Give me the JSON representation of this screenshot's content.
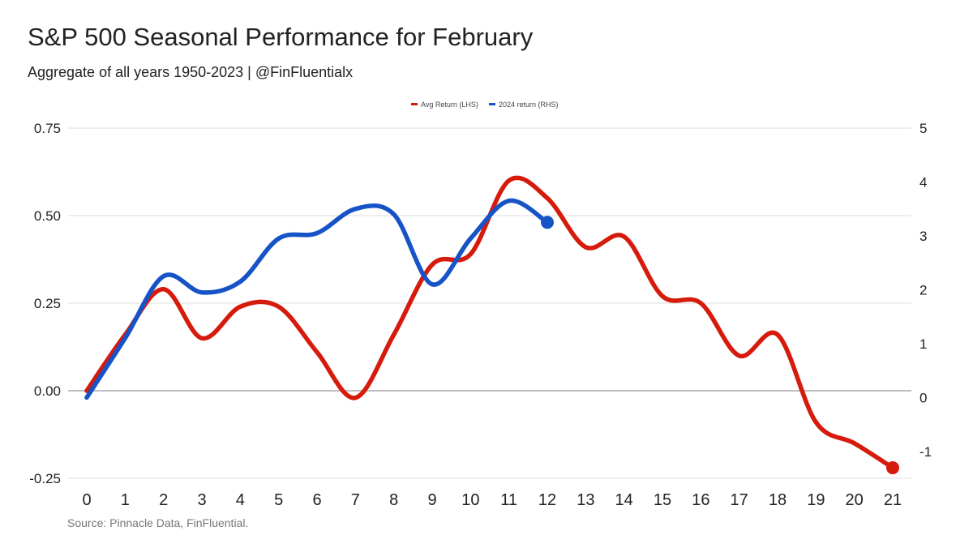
{
  "title": "S&P 500 Seasonal Performance for February",
  "subtitle": "Aggregate of all years 1950-2023 | @FinFluentialx",
  "source": "Source: Pinnacle Data, FinFluential.",
  "colors": {
    "avg": "#d61a0c",
    "y2024": "#1553c7",
    "grid": "#dddddd",
    "zero": "#aaaaaa"
  },
  "chart_data": {
    "type": "line",
    "x": [
      0,
      1,
      2,
      3,
      4,
      5,
      6,
      7,
      8,
      9,
      10,
      11,
      12,
      13,
      14,
      15,
      16,
      17,
      18,
      19,
      20,
      21
    ],
    "legend": {
      "position": "top-center"
    },
    "grid": true,
    "y_left": {
      "ylim": [
        -0.25,
        0.75
      ],
      "ticks": [
        -0.25,
        0,
        0.25,
        0.5,
        0.75
      ],
      "tick_labels": [
        "-0.25",
        "0.00",
        "0.25",
        "0.50",
        "0.75"
      ]
    },
    "y_right": {
      "ylim": [
        -1.5,
        5
      ],
      "ticks": [
        -1,
        0,
        1,
        2,
        3,
        4,
        5
      ],
      "tick_labels": [
        "-1",
        "0",
        "1",
        "2",
        "3",
        "4",
        "5"
      ]
    },
    "series": [
      {
        "name": "Avg Return (LHS)",
        "axis": "left",
        "x": [
          0,
          1,
          2,
          3,
          4,
          5,
          6,
          7,
          8,
          9,
          10,
          11,
          12,
          13,
          14,
          15,
          16,
          17,
          18,
          19,
          20,
          21
        ],
        "values": [
          0.0,
          0.16,
          0.29,
          0.15,
          0.24,
          0.24,
          0.11,
          -0.02,
          0.16,
          0.36,
          0.39,
          0.6,
          0.55,
          0.41,
          0.44,
          0.27,
          0.25,
          0.1,
          0.16,
          -0.09,
          -0.15,
          -0.22
        ]
      },
      {
        "name": "2024 return (RHS)",
        "axis": "right",
        "x": [
          0,
          1,
          2,
          3,
          4,
          5,
          6,
          7,
          8,
          9,
          10,
          11,
          12
        ],
        "values": [
          0.0,
          1.1,
          2.25,
          1.95,
          2.15,
          2.95,
          3.05,
          3.5,
          3.4,
          2.1,
          2.95,
          3.65,
          3.25
        ]
      }
    ]
  }
}
